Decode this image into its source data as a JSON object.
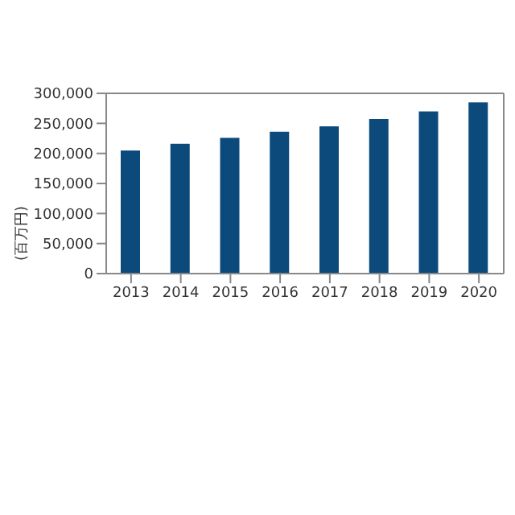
{
  "chart_data": {
    "type": "bar",
    "ylabel": "(百万円)",
    "categories": [
      "2013",
      "2014",
      "2015",
      "2016",
      "2017",
      "2018",
      "2019",
      "2020"
    ],
    "values": [
      205000,
      216000,
      226000,
      236000,
      245000,
      257000,
      270000,
      285000
    ],
    "color": "#0d4a7c",
    "ylim": [
      0,
      300000
    ],
    "yticks": [
      0,
      {
        "value": 50000,
        "label": "50,000"
      },
      {
        "value": 100000,
        "label": "100,000"
      },
      {
        "value": 150000,
        "label": "150,000"
      },
      {
        "value": 200000,
        "label": "200,000"
      },
      {
        "value": 250000,
        "label": "250,000"
      },
      {
        "value": 300000,
        "label": "300,000"
      }
    ],
    "grid": false
  }
}
